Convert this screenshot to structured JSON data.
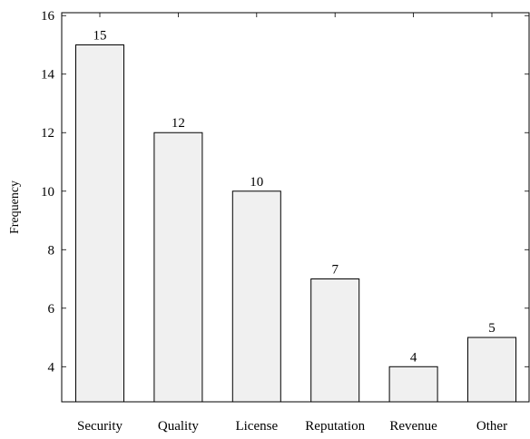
{
  "chart_data": {
    "type": "bar",
    "categories": [
      "Security",
      "Quality",
      "License",
      "Reputation",
      "Revenue",
      "Other"
    ],
    "values": [
      15,
      12,
      10,
      7,
      4,
      5
    ],
    "data_labels": [
      "15",
      "12",
      "10",
      "7",
      "4",
      "5"
    ],
    "title": "",
    "xlabel": "",
    "ylabel": "Frequency",
    "ylim": [
      2.8,
      16.1
    ],
    "yticks": [
      4,
      6,
      8,
      10,
      12,
      14,
      16
    ],
    "grid": false,
    "colors": {
      "bar_fill": "#f0f0f0",
      "bar_stroke": "#000000",
      "axis": "#000000"
    }
  }
}
